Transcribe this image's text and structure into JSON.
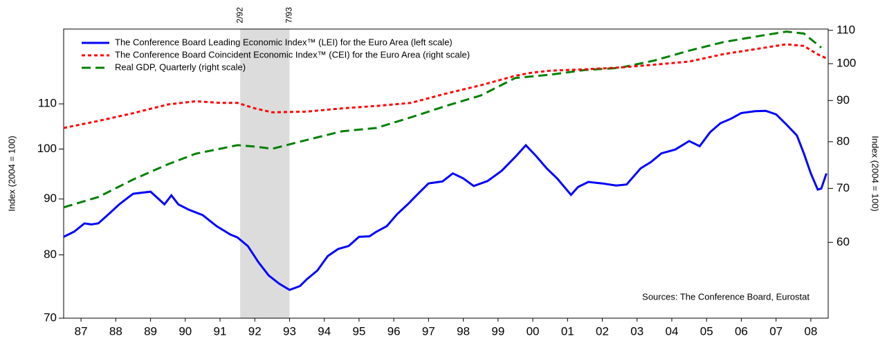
{
  "chart_data": {
    "type": "line",
    "y_label": "Index (2004 = 100)",
    "y2_label": "Index (2004 = 100)",
    "annotation": "Sources: The Conference Board, Eurostat",
    "shading": {
      "x": [
        1992.08,
        1993.5
      ],
      "labels": [
        "2/92",
        "7/93"
      ],
      "color": "#dcdcdc"
    },
    "xlim": [
      1987,
      2009
    ],
    "xticks": [
      {
        "value": 1987.5,
        "label": "87"
      },
      {
        "value": 1988.5,
        "label": "88"
      },
      {
        "value": 1989.5,
        "label": "89"
      },
      {
        "value": 1990.5,
        "label": "90"
      },
      {
        "value": 1991.5,
        "label": "91"
      },
      {
        "value": 1992.5,
        "label": "92"
      },
      {
        "value": 1993.5,
        "label": "93"
      },
      {
        "value": 1994.5,
        "label": "94"
      },
      {
        "value": 1995.5,
        "label": "95"
      },
      {
        "value": 1996.5,
        "label": "96"
      },
      {
        "value": 1997.5,
        "label": "97"
      },
      {
        "value": 1998.5,
        "label": "98"
      },
      {
        "value": 1999.5,
        "label": "99"
      },
      {
        "value": 2000.5,
        "label": "00"
      },
      {
        "value": 2001.5,
        "label": "01"
      },
      {
        "value": 2002.5,
        "label": "02"
      },
      {
        "value": 2003.5,
        "label": "03"
      },
      {
        "value": 2004.5,
        "label": "04"
      },
      {
        "value": 2005.5,
        "label": "05"
      },
      {
        "value": 2006.5,
        "label": "06"
      },
      {
        "value": 2007.5,
        "label": "07"
      },
      {
        "value": 2008.5,
        "label": "08"
      }
    ],
    "ylim": [
      70,
      128.8
    ],
    "yticks": [
      70,
      80,
      90,
      100,
      110
    ],
    "y2lim": [
      48.3,
      110.4
    ],
    "y2ticks": [
      60,
      70,
      80,
      90,
      100,
      110
    ],
    "log_scale": true,
    "legend": "upper left",
    "series": [
      {
        "name": "The Conference Board Leading Economic Index™ (LEI) for the Euro Area (left scale)",
        "color": "#0000ff",
        "dash": "solid",
        "axis": "y",
        "x": [
          1987.0,
          1987.3,
          1987.6,
          1987.8,
          1988.0,
          1988.3,
          1988.6,
          1988.8,
          1989.0,
          1989.5,
          1989.9,
          1990.1,
          1990.3,
          1990.6,
          1991.0,
          1991.4,
          1991.8,
          1992.0,
          1992.3,
          1992.6,
          1992.9,
          1993.2,
          1993.5,
          1993.8,
          1994.0,
          1994.3,
          1994.6,
          1994.9,
          1995.2,
          1995.5,
          1995.8,
          1996.0,
          1996.3,
          1996.6,
          1996.9,
          1997.2,
          1997.5,
          1997.9,
          1998.2,
          1998.5,
          1998.8,
          1999.2,
          1999.6,
          2000.0,
          2000.3,
          2000.6,
          2000.9,
          2001.2,
          2001.6,
          2001.8,
          2002.1,
          2002.5,
          2002.9,
          2003.2,
          2003.6,
          2003.9,
          2004.2,
          2004.6,
          2005.0,
          2005.3,
          2005.6,
          2005.9,
          2006.2,
          2006.5,
          2006.9,
          2007.2,
          2007.5,
          2007.8,
          2008.1,
          2008.3,
          2008.5,
          2008.7,
          2008.8,
          2008.95
        ],
        "values": [
          83.1,
          84,
          85.5,
          85.3,
          85.5,
          87.2,
          89,
          90,
          91,
          91.4,
          89,
          90.7,
          89,
          88,
          87,
          85,
          83.5,
          83,
          81.5,
          78.8,
          76.6,
          75.3,
          74.3,
          74.9,
          76,
          77.4,
          79.8,
          81,
          81.5,
          83.1,
          83.2,
          84,
          85,
          87.2,
          89,
          91,
          93,
          93.4,
          95,
          94,
          92.5,
          93.5,
          95.5,
          98.4,
          100.8,
          98.5,
          96,
          94,
          90.8,
          92.3,
          93.3,
          93,
          92.6,
          92.8,
          96,
          97.3,
          99.1,
          99.9,
          101.7,
          100.6,
          103.6,
          105.6,
          106.6,
          107.9,
          108.3,
          108.4,
          107.6,
          105.3,
          102.9,
          99.1,
          95,
          91.8,
          92,
          95
        ]
      },
      {
        "name": "The Conference Board Coincident Economic Index™ (CEI) for the Euro Area (right scale)",
        "color": "#ff0000",
        "dash": "dotted",
        "axis": "y2",
        "x": [
          1987.0,
          1988.0,
          1989.0,
          1990.0,
          1990.8,
          1991.5,
          1992.0,
          1992.5,
          1993.0,
          1994.0,
          1995.0,
          1996.0,
          1997.0,
          1998.0,
          1999.0,
          2000.0,
          2000.5,
          2001.0,
          2002.0,
          2003.0,
          2004.0,
          2005.0,
          2006.0,
          2007.0,
          2007.8,
          2008.3,
          2008.7,
          2009.0
        ],
        "values": [
          83.2,
          84.9,
          86.8,
          89,
          89.8,
          89.4,
          89.4,
          88,
          87,
          87.2,
          88,
          88.6,
          89.4,
          91.8,
          94,
          96.6,
          97.5,
          98,
          98.4,
          98.9,
          99.7,
          100.6,
          102.8,
          104.4,
          105.7,
          105.2,
          102.7,
          101.3
        ]
      },
      {
        "name": "Real GDP, Quarterly  (right scale)",
        "color": "#008000",
        "dash": "dashed",
        "axis": "y2",
        "x": [
          1987.0,
          1988.0,
          1989.0,
          1990.0,
          1990.8,
          1991.5,
          1992.0,
          1992.5,
          1993.0,
          1994.0,
          1995.0,
          1996.0,
          1997.0,
          1998.0,
          1999.0,
          2000.0,
          2001.0,
          2002.0,
          2003.0,
          2004.0,
          2005.0,
          2006.0,
          2007.0,
          2007.8,
          2008.3,
          2008.8
        ],
        "values": [
          66.3,
          68.3,
          71.8,
          75,
          77.3,
          78.4,
          79.2,
          78.9,
          78.4,
          80.4,
          82.4,
          83.2,
          85.8,
          88.6,
          91.3,
          96,
          96.9,
          98.2,
          98.8,
          100.9,
          103.8,
          106.4,
          108.2,
          109.6,
          109,
          104.7
        ]
      }
    ]
  }
}
